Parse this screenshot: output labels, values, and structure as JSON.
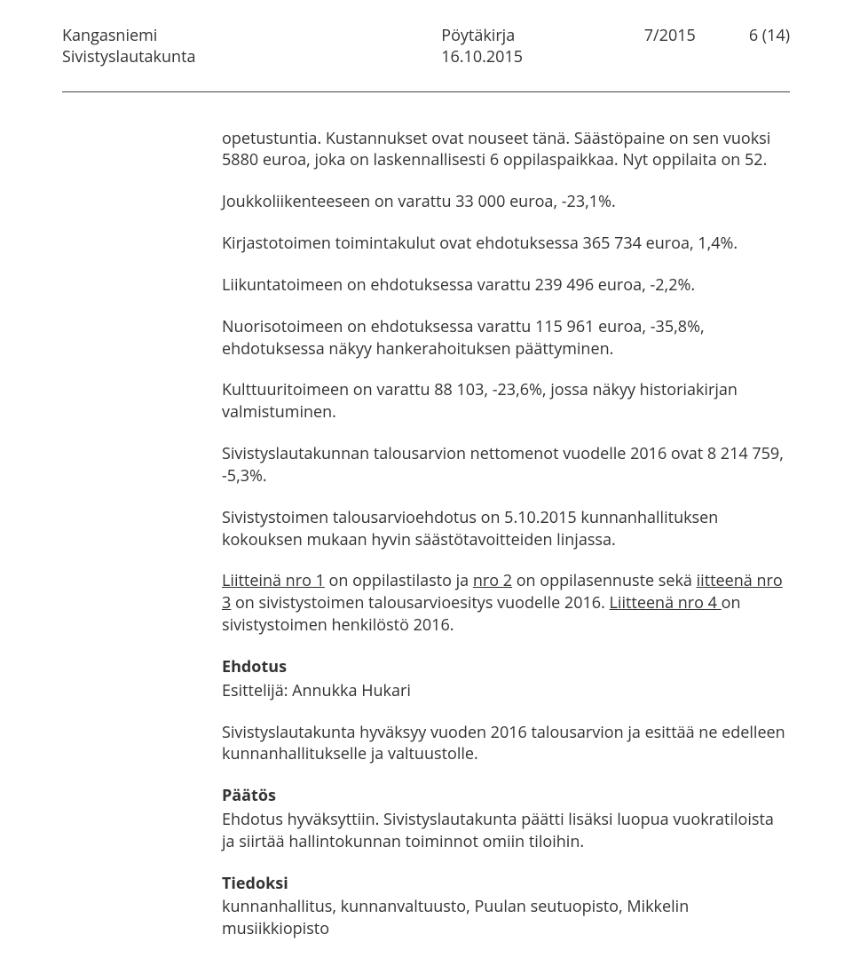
{
  "header": {
    "org": "Kangasniemi",
    "board": "Sivistyslautakunta",
    "doc_type": "Pöytäkirja",
    "date": "16.10.2015",
    "doc_number": "7/2015",
    "page": "6 (14)"
  },
  "paragraphs": {
    "p1": "opetustuntia. Kustannukset ovat nouseet tänä. Säästöpaine on sen vuoksi 5880 euroa, joka on laskennallisesti 6 oppilaspaikkaa. Nyt oppilaita on 52.",
    "p2": "Joukkoliikenteeseen on varattu 33 000 euroa, -23,1%.",
    "p3": "Kirjastotoimen toimintakulut ovat ehdotuksessa 365 734 euroa, 1,4%.",
    "p4": "Liikuntatoimeen on ehdotuksessa varattu 239 496 euroa, -2,2%.",
    "p5": "Nuorisotoimeen on ehdotuksessa varattu 115 961 euroa, -35,8%, ehdotuksessa näkyy hankerahoituksen päättyminen.",
    "p6": "Kulttuuritoimeen on varattu 88 103, -23,6%, jossa näkyy historiakirjan valmistuminen.",
    "p7": "Sivistyslautakunnan talousarvion nettomenot vuodelle 2016 ovat 8 214 759, -5,3%.",
    "p8": "Sivistystoimen talousarvioehdotus on 5.10.2015 kunnanhallituksen kokouksen mukaan hyvin säästötavoitteiden linjassa.",
    "p9a": "Liitteinä nro 1",
    "p9b": " on oppilastilasto ja ",
    "p9c": "nro 2",
    "p9d": " on oppilasennuste sekä ",
    "p9e": "iitteenä nro 3",
    "p9f": " on sivistystoimen talousarvioesitys vuodelle 2016. ",
    "p9g": "Liitteenä nro 4 ",
    "p9h": "on sivistystoimen henkilöstö 2016.",
    "ehdotus_label": "Ehdotus",
    "presenter": "Esittelijä: Annukka Hukari",
    "p10": "Sivistyslautakunta hyväksyy vuoden 2016 talousarvion  ja esittää ne edelleen kunnanhallitukselle ja valtuustolle.",
    "paatos_label": "Päätös",
    "p11": "Ehdotus hyväksyttiin. Sivistyslautakunta päätti lisäksi luopua vuokratiloista ja siirtää hallintokunnan toiminnot omiin tiloihin.",
    "tiedoksi_label": "Tiedoksi",
    "p12": "kunnanhallitus, kunnanvaltuusto, Puulan seutuopisto, Mikkelin musiikkiopisto"
  }
}
